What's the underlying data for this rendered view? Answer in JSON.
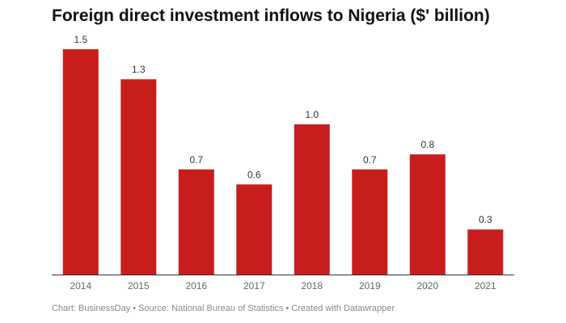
{
  "chart_data": {
    "type": "bar",
    "title": "Foreign direct investment inflows to Nigeria ($' billion)",
    "categories": [
      "2014",
      "2015",
      "2016",
      "2017",
      "2018",
      "2019",
      "2020",
      "2021"
    ],
    "values": [
      1.5,
      1.3,
      0.7,
      0.6,
      1.0,
      0.7,
      0.8,
      0.3
    ],
    "value_labels": [
      "1.5",
      "1.3",
      "0.7",
      "0.6",
      "1.0",
      "0.7",
      "0.8",
      "0.3"
    ],
    "xlabel": "",
    "ylabel": "",
    "ylim": [
      0,
      1.5
    ],
    "bar_color": "#c81d1d",
    "grid": false
  },
  "footer": "Chart: BusinessDay • Source: National Bureau of Statistics • Created with Datawrapper"
}
